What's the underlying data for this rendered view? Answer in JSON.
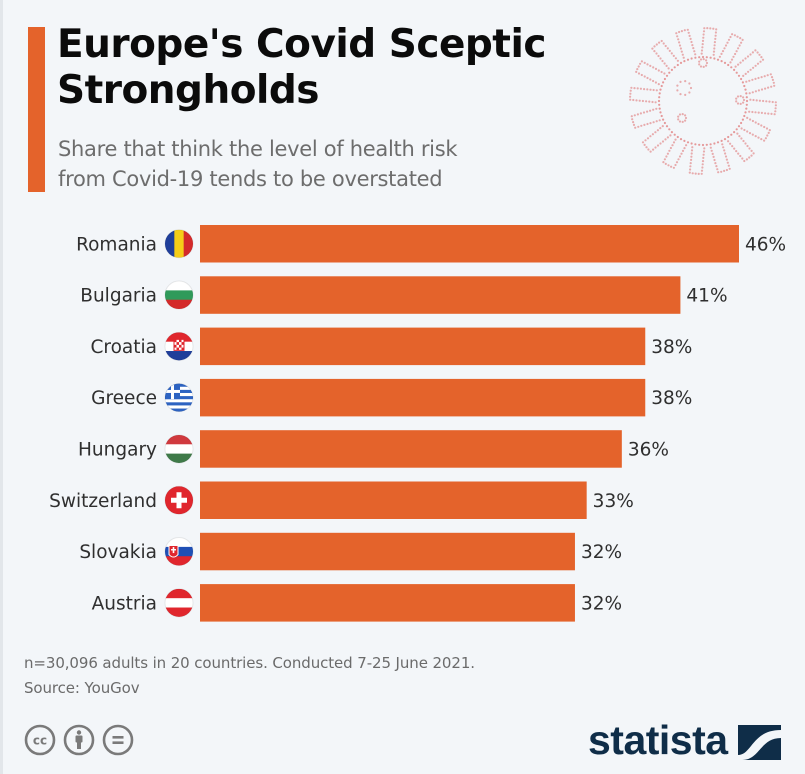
{
  "header": {
    "title": "Europe's Covid Sceptic Strongholds",
    "subtitle_line1": "Share that think the level of health risk",
    "subtitle_line2": "from Covid-19 tends to be overstated",
    "decoration": "coronavirus-dotted-icon"
  },
  "colors": {
    "accent": "#e4632b",
    "bar": "#e4632b",
    "background": "#f3f6f9",
    "title": "#0b0b0b",
    "subtitle": "#6d6d6d",
    "logo": "#0f2d48"
  },
  "chart_data": {
    "type": "bar",
    "orientation": "horizontal",
    "title": "Europe's Covid Sceptic Strongholds",
    "subtitle": "Share that think the level of health risk from Covid-19 tends to be overstated",
    "xlabel": "",
    "ylabel": "",
    "unit": "%",
    "categories": [
      "Romania",
      "Bulgaria",
      "Croatia",
      "Greece",
      "Hungary",
      "Switzerland",
      "Slovakia",
      "Austria"
    ],
    "values": [
      46,
      41,
      38,
      38,
      36,
      33,
      32,
      32
    ],
    "value_labels": [
      "46%",
      "41%",
      "38%",
      "38%",
      "36%",
      "33%",
      "32%",
      "32%"
    ],
    "flags": [
      "romania-flag-icon",
      "bulgaria-flag-icon",
      "croatia-flag-icon",
      "greece-flag-icon",
      "hungary-flag-icon",
      "switzerland-flag-icon",
      "slovakia-flag-icon",
      "austria-flag-icon"
    ],
    "xlim": [
      0,
      46
    ],
    "grid": false,
    "legend": "none"
  },
  "footer": {
    "note": "n=30,096 adults in 20 countries. Conducted 7-25 June 2021.",
    "source": "Source: YouGov",
    "license_icons": [
      "cc-icon",
      "attribution-icon",
      "no-derivatives-icon"
    ],
    "cc_text": "cc",
    "nd_text": "=",
    "logo_text": "statista"
  }
}
